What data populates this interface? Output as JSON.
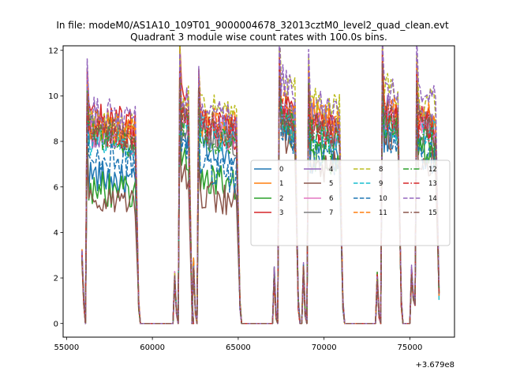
{
  "chart_data": {
    "type": "line",
    "suptitle": "In file: modeM0/AS1A10_109T01_9000004678_32013cztM0_level2_quad_clean.evt",
    "title": "Quadrant 3 module wise count rates with 100.0s bins.",
    "xlabel": "",
    "ylabel": "",
    "x_offset_label": "+3.679e8",
    "xlim": [
      54800,
      77600
    ],
    "ylim": [
      -0.6,
      12.2
    ],
    "x_ticks": [
      55000,
      60000,
      65000,
      70000,
      75000
    ],
    "x_tick_labels": [
      "55000",
      "60000",
      "65000",
      "70000",
      "75000"
    ],
    "y_ticks": [
      0,
      2,
      4,
      6,
      8,
      10,
      12
    ],
    "y_tick_labels": [
      "0",
      "2",
      "4",
      "6",
      "8",
      "10",
      "12"
    ],
    "grid": false,
    "legend_position": "right",
    "bin_size_s": 100,
    "segments": [
      {
        "start": 55900,
        "end": 59200,
        "edge_values": [
          3.0,
          1.0,
          0.0
        ]
      },
      {
        "start": 61300,
        "end": 62300,
        "edge_values": [
          2.0,
          0.6,
          0.0
        ]
      },
      {
        "start": 62400,
        "end": 65100,
        "edge_values": [
          2.6,
          0.5,
          0.0
        ]
      },
      {
        "start": 67100,
        "end": 68500,
        "edge_values": [
          2.2,
          0.4,
          0.0
        ]
      },
      {
        "start": 68800,
        "end": 71100,
        "edge_values": [
          2.4,
          0.5,
          0.0
        ]
      },
      {
        "start": 73100,
        "end": 74500,
        "edge_values": [
          2.0,
          0.4,
          0.0
        ]
      },
      {
        "start": 75100,
        "end": 76700,
        "edge_values": [
          2.3,
          1.2,
          0.8
        ]
      }
    ],
    "series": [
      {
        "name": "0",
        "color": "#1f77b4",
        "dash": "solid",
        "levels": [
          6.6,
          8.3,
          8.0,
          9.0,
          7.9,
          8.4,
          8.3
        ]
      },
      {
        "name": "1",
        "color": "#ff7f0e",
        "dash": "solid",
        "levels": [
          8.7,
          9.4,
          9.0,
          9.6,
          9.3,
          9.5,
          9.4
        ]
      },
      {
        "name": "2",
        "color": "#2ca02c",
        "dash": "solid",
        "levels": [
          6.1,
          7.7,
          6.5,
          8.8,
          7.5,
          8.7,
          7.8
        ]
      },
      {
        "name": "3",
        "color": "#d62728",
        "dash": "solid",
        "levels": [
          9.2,
          10.0,
          8.8,
          9.6,
          8.9,
          9.3,
          9.1
        ]
      },
      {
        "name": "4",
        "color": "#9467bd",
        "dash": "solid",
        "levels": [
          8.5,
          9.2,
          9.0,
          9.8,
          9.2,
          9.6,
          9.3
        ]
      },
      {
        "name": "5",
        "color": "#8c564b",
        "dash": "solid",
        "levels": [
          5.6,
          6.6,
          5.8,
          8.3,
          7.2,
          8.4,
          7.5
        ]
      },
      {
        "name": "6",
        "color": "#e377c2",
        "dash": "solid",
        "levels": [
          8.6,
          9.0,
          8.7,
          9.4,
          8.9,
          9.3,
          9.0
        ]
      },
      {
        "name": "7",
        "color": "#7f7f7f",
        "dash": "solid",
        "levels": [
          8.4,
          8.8,
          8.5,
          9.1,
          8.7,
          9.0,
          8.8
        ]
      },
      {
        "name": "8",
        "color": "#bcbd22",
        "dash": "dashed",
        "levels": [
          8.9,
          10.1,
          9.6,
          10.6,
          9.8,
          10.5,
          10.0
        ]
      },
      {
        "name": "9",
        "color": "#17becf",
        "dash": "dashed",
        "levels": [
          8.2,
          8.8,
          8.6,
          9.2,
          8.5,
          9.0,
          8.7
        ]
      },
      {
        "name": "10",
        "color": "#1f77b4",
        "dash": "dashed",
        "levels": [
          7.5,
          8.1,
          6.9,
          8.6,
          7.4,
          8.4,
          7.6
        ]
      },
      {
        "name": "11",
        "color": "#ff7f0e",
        "dash": "dashed",
        "levels": [
          8.8,
          9.6,
          9.2,
          10.0,
          9.3,
          9.8,
          9.4
        ]
      },
      {
        "name": "12",
        "color": "#2ca02c",
        "dash": "dashdot",
        "levels": [
          8.5,
          8.9,
          8.2,
          9.1,
          8.3,
          8.9,
          8.4
        ]
      },
      {
        "name": "13",
        "color": "#d62728",
        "dash": "dashdot",
        "levels": [
          8.6,
          9.3,
          8.9,
          9.5,
          8.8,
          9.4,
          9.0
        ]
      },
      {
        "name": "14",
        "color": "#9467bd",
        "dash": "dashed",
        "levels": [
          9.4,
          10.0,
          9.6,
          10.8,
          9.8,
          10.6,
          10.3
        ]
      },
      {
        "name": "15",
        "color": "#8c564b",
        "dash": "dashdot",
        "levels": [
          8.6,
          9.2,
          8.8,
          9.4,
          8.7,
          9.3,
          8.9
        ]
      }
    ]
  }
}
